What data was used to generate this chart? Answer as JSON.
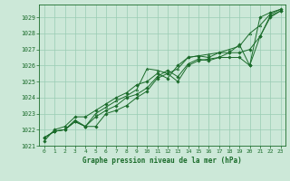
{
  "xlabel": "Graphe pression niveau de la mer (hPa)",
  "xlim": [
    -0.5,
    23.5
  ],
  "ylim": [
    1021,
    1029.8
  ],
  "yticks": [
    1021,
    1022,
    1023,
    1024,
    1025,
    1026,
    1027,
    1028,
    1029
  ],
  "xticks": [
    0,
    1,
    2,
    3,
    4,
    5,
    6,
    7,
    8,
    9,
    10,
    11,
    12,
    13,
    14,
    15,
    16,
    17,
    18,
    19,
    20,
    21,
    22,
    23
  ],
  "bg_color": "#cce8d8",
  "grid_color": "#99ccb3",
  "line_color": "#1a6b2a",
  "series1": [
    1021.5,
    1021.9,
    1022.0,
    1022.5,
    1022.2,
    1022.2,
    1023.0,
    1023.2,
    1023.5,
    1024.0,
    1024.4,
    1025.2,
    1025.5,
    1025.0,
    1026.0,
    1026.3,
    1026.4,
    1026.5,
    1026.5,
    1026.5,
    1026.0,
    1027.8,
    1029.1,
    1029.4
  ],
  "series2": [
    1021.5,
    1021.9,
    1022.0,
    1022.5,
    1022.2,
    1022.8,
    1023.2,
    1023.5,
    1024.0,
    1024.2,
    1024.6,
    1025.3,
    1025.7,
    1025.3,
    1026.1,
    1026.4,
    1026.3,
    1026.5,
    1026.8,
    1026.8,
    1027.0,
    1027.8,
    1029.0,
    1029.4
  ],
  "series3": [
    1021.5,
    1021.9,
    1022.0,
    1022.6,
    1022.2,
    1023.0,
    1023.4,
    1023.8,
    1024.1,
    1024.5,
    1025.8,
    1025.7,
    1025.5,
    1025.8,
    1026.5,
    1026.6,
    1026.7,
    1026.8,
    1027.0,
    1027.2,
    1028.0,
    1028.5,
    1029.2,
    1029.5
  ],
  "series4": [
    1021.3,
    1022.0,
    1022.2,
    1022.8,
    1022.8,
    1023.2,
    1023.6,
    1024.0,
    1024.3,
    1024.8,
    1025.0,
    1025.5,
    1025.2,
    1026.0,
    1026.5,
    1026.6,
    1026.5,
    1026.8,
    1026.8,
    1027.3,
    1026.0,
    1029.0,
    1029.3,
    1029.5
  ]
}
